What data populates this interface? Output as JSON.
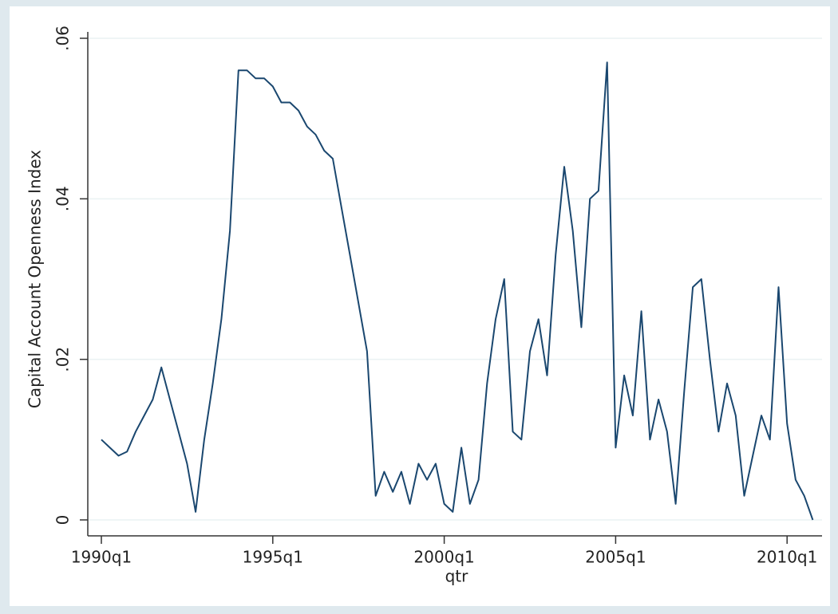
{
  "chart_data": {
    "type": "line",
    "x": [
      "1990q1",
      "1990q2",
      "1990q3",
      "1990q4",
      "1991q1",
      "1991q2",
      "1991q3",
      "1991q4",
      "1992q1",
      "1992q2",
      "1992q3",
      "1992q4",
      "1993q1",
      "1993q2",
      "1993q3",
      "1993q4",
      "1994q1",
      "1994q2",
      "1994q3",
      "1994q4",
      "1995q1",
      "1995q2",
      "1995q3",
      "1995q4",
      "1996q1",
      "1996q2",
      "1996q3",
      "1996q4",
      "1997q1",
      "1997q2",
      "1997q3",
      "1997q4",
      "1998q1",
      "1998q2",
      "1998q3",
      "1998q4",
      "1999q1",
      "1999q2",
      "1999q3",
      "1999q4",
      "2000q1",
      "2000q2",
      "2000q3",
      "2000q4",
      "2001q1",
      "2001q2",
      "2001q3",
      "2001q4",
      "2002q1",
      "2002q2",
      "2002q3",
      "2002q4",
      "2003q1",
      "2003q2",
      "2003q3",
      "2003q4",
      "2004q1",
      "2004q2",
      "2004q3",
      "2004q4",
      "2005q1",
      "2005q2",
      "2005q3",
      "2005q4",
      "2006q1",
      "2006q2",
      "2006q3",
      "2006q4",
      "2007q1",
      "2007q2",
      "2007q3",
      "2007q4",
      "2008q1",
      "2008q2",
      "2008q3",
      "2008q4",
      "2009q1",
      "2009q2",
      "2009q3",
      "2009q4",
      "2010q1",
      "2010q2",
      "2010q3",
      "2010q4"
    ],
    "series": [
      {
        "name": "Capital Account Openness Index",
        "color": "#1a476f",
        "values": [
          0.01,
          0.009,
          0.008,
          0.0085,
          0.011,
          0.013,
          0.015,
          0.019,
          0.015,
          0.011,
          0.007,
          0.001,
          0.01,
          0.017,
          0.025,
          0.036,
          0.056,
          0.056,
          0.055,
          0.055,
          0.054,
          0.052,
          0.052,
          0.051,
          0.049,
          0.048,
          0.046,
          0.045,
          0.039,
          0.033,
          0.027,
          0.021,
          0.003,
          0.006,
          0.0035,
          0.006,
          0.002,
          0.007,
          0.005,
          0.007,
          0.002,
          0.001,
          0.009,
          0.002,
          0.005,
          0.017,
          0.025,
          0.03,
          0.011,
          0.01,
          0.021,
          0.025,
          0.018,
          0.033,
          0.044,
          0.036,
          0.024,
          0.04,
          0.041,
          0.057,
          0.009,
          0.018,
          0.013,
          0.026,
          0.01,
          0.015,
          0.011,
          0.002,
          0.016,
          0.029,
          0.03,
          0.02,
          0.011,
          0.017,
          0.013,
          0.003,
          0.008,
          0.013,
          0.01,
          0.029,
          0.012,
          0.005,
          0.003,
          0
        ]
      }
    ],
    "xlabel": "qtr",
    "ylabel": "Capital Account Openness Index",
    "xticks": [
      "1990q1",
      "1995q1",
      "2000q1",
      "2005q1",
      "2010q1"
    ],
    "ylim": [
      0,
      0.06
    ],
    "yticks": [
      0,
      {
        "value": 0.02,
        "label": ".02"
      },
      {
        "value": 0.04,
        "label": ".04"
      },
      {
        "value": 0.06,
        "label": ".06"
      }
    ],
    "grid": true
  }
}
